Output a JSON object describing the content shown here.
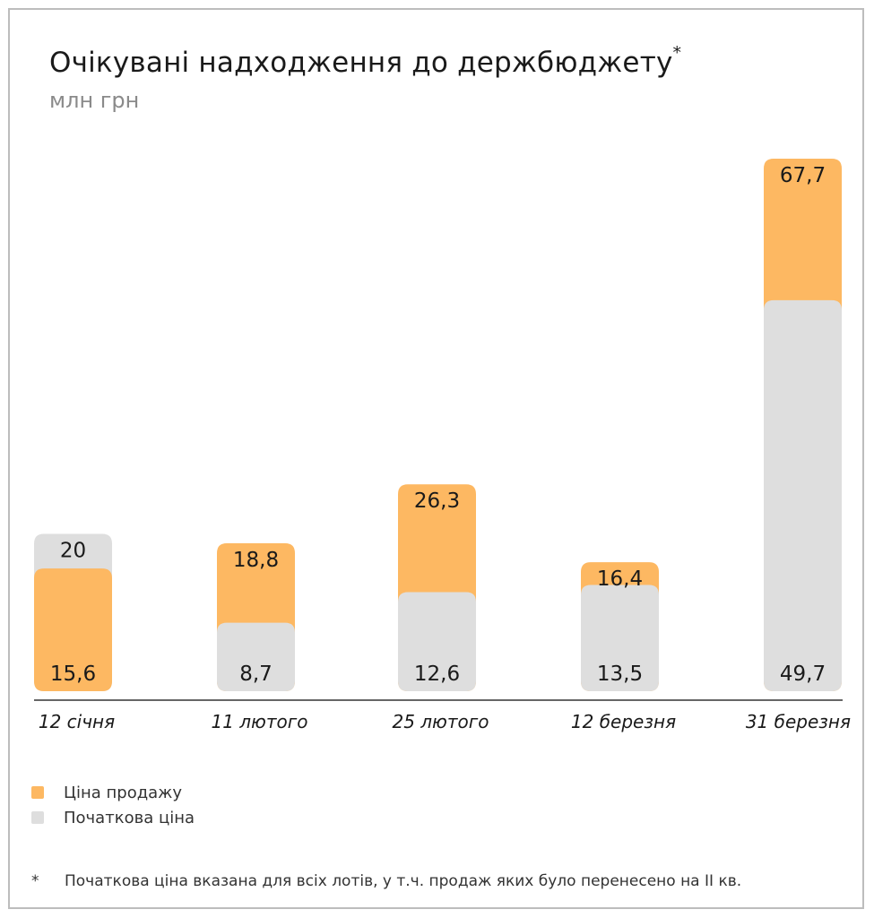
{
  "header": {
    "title": "Очікувані надходження до держбюджету",
    "title_mark": "*",
    "subtitle": "млн грн"
  },
  "colors": {
    "sale": "#fdb862",
    "start": "#dedede",
    "axis": "#333333"
  },
  "legend": {
    "sale_label": "Ціна продажу",
    "start_label": "Початкова ціна"
  },
  "footnote": {
    "mark": "*",
    "text": "Початкова ціна вказана для всіх лотів, у т.ч. продаж яких було перенесено на II кв."
  },
  "chart_data": {
    "type": "bar",
    "categories": [
      "12 січня",
      "11 лютого",
      "25 лютого",
      "12 березня",
      "31 березня"
    ],
    "series": [
      {
        "name": "Ціна продажу",
        "values": [
          15.6,
          18.8,
          26.3,
          16.4,
          67.7
        ]
      },
      {
        "name": "Початкова ціна",
        "values": [
          20,
          8.7,
          12.6,
          13.5,
          49.7
        ]
      }
    ],
    "value_labels": {
      "Ціна продажу": [
        "15,6",
        "18,8",
        "26,3",
        "16,4",
        "67,7"
      ],
      "Початкова ціна": [
        "20",
        "8,7",
        "12,6",
        "13,5",
        "49,7"
      ]
    },
    "title": "Очікувані надходження до держбюджету",
    "xlabel": "",
    "ylabel": "млн грн",
    "ylim": [
      0,
      67.7
    ],
    "grid": false,
    "legend_position": "bottom-left"
  }
}
